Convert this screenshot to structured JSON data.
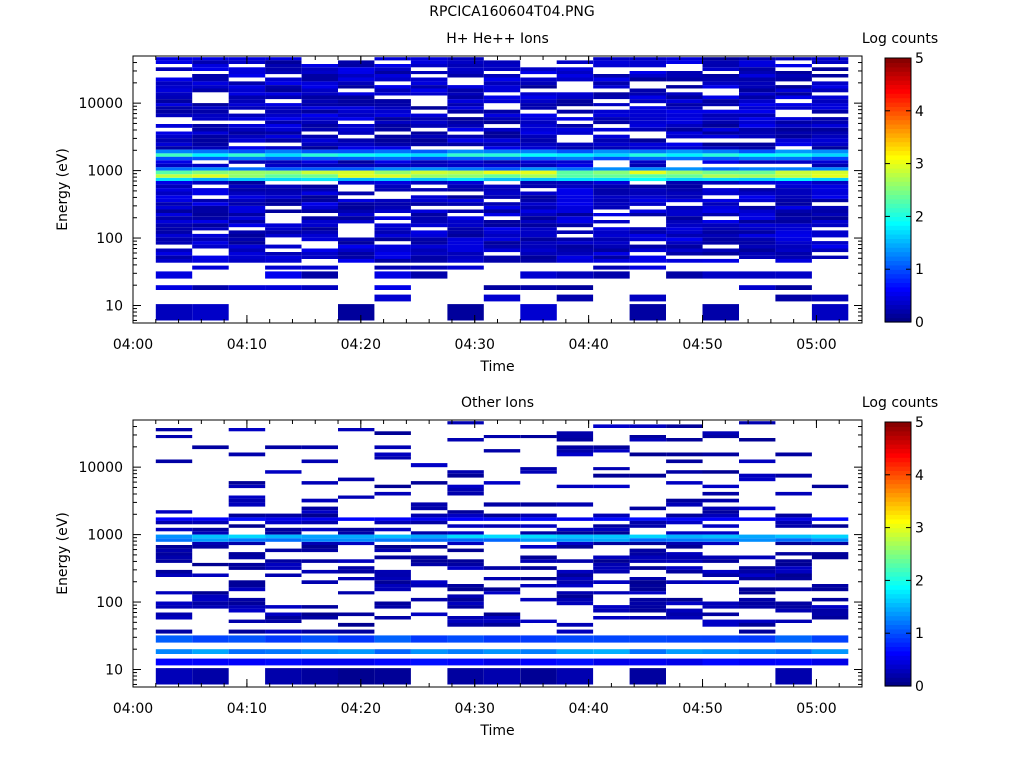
{
  "figure": {
    "title": "RPCICA160604T04.PNG"
  },
  "chart_data": [
    {
      "type": "heatmap",
      "title": "H+ He++ Ions",
      "xlabel": "Time",
      "ylabel": "Energy (eV)",
      "x_tick_labels": [
        "04:00",
        "04:10",
        "04:20",
        "04:30",
        "04:40",
        "04:50",
        "05:00"
      ],
      "x_tick_minutes": [
        0,
        10,
        20,
        30,
        40,
        50,
        60
      ],
      "xlim_minutes": [
        0,
        64
      ],
      "ylim": [
        5.5,
        50000
      ],
      "yscale": "log",
      "y_tick_values": [
        10,
        100,
        1000,
        10000
      ],
      "y_tick_labels": [
        "10",
        "100",
        "1000",
        "10000"
      ],
      "time_bins_minutes": [
        [
          2.0,
          5.2
        ],
        [
          5.2,
          8.4
        ],
        [
          8.4,
          11.6
        ],
        [
          11.6,
          14.8
        ],
        [
          14.8,
          18.0
        ],
        [
          18.0,
          21.2
        ],
        [
          21.2,
          24.4
        ],
        [
          24.4,
          27.6
        ],
        [
          27.6,
          30.8
        ],
        [
          30.8,
          34.0
        ],
        [
          34.0,
          37.2
        ],
        [
          37.2,
          40.4
        ],
        [
          40.4,
          43.6
        ],
        [
          43.6,
          46.8
        ],
        [
          46.8,
          50.0
        ],
        [
          50.0,
          53.2
        ],
        [
          53.2,
          56.4
        ],
        [
          56.4,
          59.6
        ],
        [
          59.6,
          62.8
        ]
      ],
      "energy_bins_eV": [
        [
          43000,
          48000
        ],
        [
          38000,
          43000
        ],
        [
          34000,
          38000
        ],
        [
          30000,
          34000
        ],
        [
          27000,
          30000
        ],
        [
          24000,
          27000
        ],
        [
          21000,
          24000
        ],
        [
          18500,
          21000
        ],
        [
          16500,
          18500
        ],
        [
          14500,
          16500
        ],
        [
          13000,
          14500
        ],
        [
          11500,
          13000
        ],
        [
          10000,
          11500
        ],
        [
          9000,
          10000
        ],
        [
          8000,
          9000
        ],
        [
          7000,
          8000
        ],
        [
          6200,
          7000
        ],
        [
          5500,
          6200
        ],
        [
          4900,
          5500
        ],
        [
          4300,
          4900
        ],
        [
          3800,
          4300
        ],
        [
          3400,
          3800
        ],
        [
          3000,
          3400
        ],
        [
          2600,
          3000
        ],
        [
          2300,
          2600
        ],
        [
          2050,
          2300
        ],
        [
          1800,
          2050
        ],
        [
          1600,
          1800
        ],
        [
          1420,
          1600
        ],
        [
          1260,
          1420
        ],
        [
          1120,
          1260
        ],
        [
          1000,
          1120
        ],
        [
          880,
          1000
        ],
        [
          780,
          880
        ],
        [
          700,
          780
        ],
        [
          620,
          700
        ],
        [
          550,
          620
        ],
        [
          490,
          550
        ],
        [
          430,
          490
        ],
        [
          380,
          430
        ],
        [
          340,
          380
        ],
        [
          300,
          340
        ],
        [
          265,
          300
        ],
        [
          235,
          265
        ],
        [
          210,
          235
        ],
        [
          185,
          210
        ],
        [
          165,
          185
        ],
        [
          145,
          165
        ],
        [
          130,
          145
        ],
        [
          115,
          130
        ],
        [
          102,
          115
        ],
        [
          90,
          102
        ],
        [
          80,
          90
        ],
        [
          70,
          80
        ],
        [
          62,
          70
        ],
        [
          55,
          62
        ],
        [
          49,
          55
        ],
        [
          43,
          49
        ],
        [
          34,
          39
        ],
        [
          25,
          32
        ],
        [
          17,
          20
        ],
        [
          11.5,
          14.5
        ],
        [
          6,
          10.5
        ]
      ],
      "colorbar": {
        "label": "Log counts",
        "range": [
          0,
          5
        ],
        "tick_labels": [
          "0",
          "1",
          "2",
          "3",
          "4",
          "5"
        ],
        "colormap": "jet"
      },
      "pattern": {
        "background_level": 0.3,
        "bands": [
          {
            "energy_range": [
              1600,
              1800
            ],
            "level": 1.9
          },
          {
            "energy_range": [
              1800,
              2050
            ],
            "level": 1.2
          },
          {
            "energy_range": [
              1420,
              1600
            ],
            "level": 1.1
          },
          {
            "energy_range": [
              1000,
              1120
            ],
            "level": 1.2
          },
          {
            "energy_range": [
              880,
              1000
            ],
            "level": 2.7
          },
          {
            "energy_range": [
              780,
              880
            ],
            "level": 2.6
          },
          {
            "energy_range": [
              700,
              780
            ],
            "level": 1.7
          }
        ],
        "sparse_below_eV": 40,
        "empty_fraction": 0.18
      }
    },
    {
      "type": "heatmap",
      "title": "Other Ions",
      "xlabel": "Time",
      "ylabel": "Energy (eV)",
      "x_tick_labels": [
        "04:00",
        "04:10",
        "04:20",
        "04:30",
        "04:40",
        "04:50",
        "05:00"
      ],
      "x_tick_minutes": [
        0,
        10,
        20,
        30,
        40,
        50,
        60
      ],
      "xlim_minutes": [
        0,
        64
      ],
      "ylim": [
        5.5,
        50000
      ],
      "yscale": "log",
      "y_tick_values": [
        10,
        100,
        1000,
        10000
      ],
      "y_tick_labels": [
        "10",
        "100",
        "1000",
        "10000"
      ],
      "time_bins_minutes": [
        [
          2.0,
          5.2
        ],
        [
          5.2,
          8.4
        ],
        [
          8.4,
          11.6
        ],
        [
          11.6,
          14.8
        ],
        [
          14.8,
          18.0
        ],
        [
          18.0,
          21.2
        ],
        [
          21.2,
          24.4
        ],
        [
          24.4,
          27.6
        ],
        [
          27.6,
          30.8
        ],
        [
          30.8,
          34.0
        ],
        [
          34.0,
          37.2
        ],
        [
          37.2,
          40.4
        ],
        [
          40.4,
          43.6
        ],
        [
          43.6,
          46.8
        ],
        [
          46.8,
          50.0
        ],
        [
          50.0,
          53.2
        ],
        [
          53.2,
          56.4
        ],
        [
          56.4,
          59.6
        ],
        [
          59.6,
          62.8
        ]
      ],
      "energy_bins_eV": [
        [
          43000,
          48000
        ],
        [
          38000,
          43000
        ],
        [
          34000,
          38000
        ],
        [
          30000,
          34000
        ],
        [
          27000,
          30000
        ],
        [
          24000,
          27000
        ],
        [
          21000,
          24000
        ],
        [
          18500,
          21000
        ],
        [
          16500,
          18500
        ],
        [
          14500,
          16500
        ],
        [
          13000,
          14500
        ],
        [
          11500,
          13000
        ],
        [
          10000,
          11500
        ],
        [
          9000,
          10000
        ],
        [
          8000,
          9000
        ],
        [
          7000,
          8000
        ],
        [
          6200,
          7000
        ],
        [
          5500,
          6200
        ],
        [
          4900,
          5500
        ],
        [
          4300,
          4900
        ],
        [
          3800,
          4300
        ],
        [
          3400,
          3800
        ],
        [
          3000,
          3400
        ],
        [
          2600,
          3000
        ],
        [
          2300,
          2600
        ],
        [
          2050,
          2300
        ],
        [
          1800,
          2050
        ],
        [
          1600,
          1800
        ],
        [
          1420,
          1600
        ],
        [
          1260,
          1420
        ],
        [
          1120,
          1260
        ],
        [
          1000,
          1120
        ],
        [
          880,
          1000
        ],
        [
          780,
          880
        ],
        [
          700,
          780
        ],
        [
          620,
          700
        ],
        [
          550,
          620
        ],
        [
          490,
          550
        ],
        [
          430,
          490
        ],
        [
          380,
          430
        ],
        [
          340,
          380
        ],
        [
          300,
          340
        ],
        [
          265,
          300
        ],
        [
          235,
          265
        ],
        [
          210,
          235
        ],
        [
          185,
          210
        ],
        [
          165,
          185
        ],
        [
          145,
          165
        ],
        [
          130,
          145
        ],
        [
          115,
          130
        ],
        [
          102,
          115
        ],
        [
          90,
          102
        ],
        [
          80,
          90
        ],
        [
          70,
          80
        ],
        [
          62,
          70
        ],
        [
          55,
          62
        ],
        [
          49,
          55
        ],
        [
          43,
          49
        ],
        [
          34,
          39
        ],
        [
          25,
          32
        ],
        [
          17,
          20
        ],
        [
          11.5,
          14.5
        ],
        [
          6,
          10.5
        ]
      ],
      "colorbar": {
        "label": "Log counts",
        "range": [
          0,
          5
        ],
        "tick_labels": [
          "0",
          "1",
          "2",
          "3",
          "4",
          "5"
        ],
        "colormap": "jet"
      },
      "pattern": {
        "background_level": 0.2,
        "bands": [
          {
            "energy_range": [
              880,
              1000
            ],
            "level": 1.5
          },
          {
            "energy_range": [
              780,
              880
            ],
            "level": 1.3
          },
          {
            "energy_range": [
              1600,
              1800
            ],
            "level": 0.6
          },
          {
            "energy_range": [
              17,
              20
            ],
            "level": 1.3
          },
          {
            "energy_range": [
              25,
              32
            ],
            "level": 1.0
          },
          {
            "energy_range": [
              11.5,
              14.5
            ],
            "level": 0.6
          }
        ],
        "sparse_above_eV": 2100,
        "empty_fraction": 0.55
      }
    }
  ]
}
